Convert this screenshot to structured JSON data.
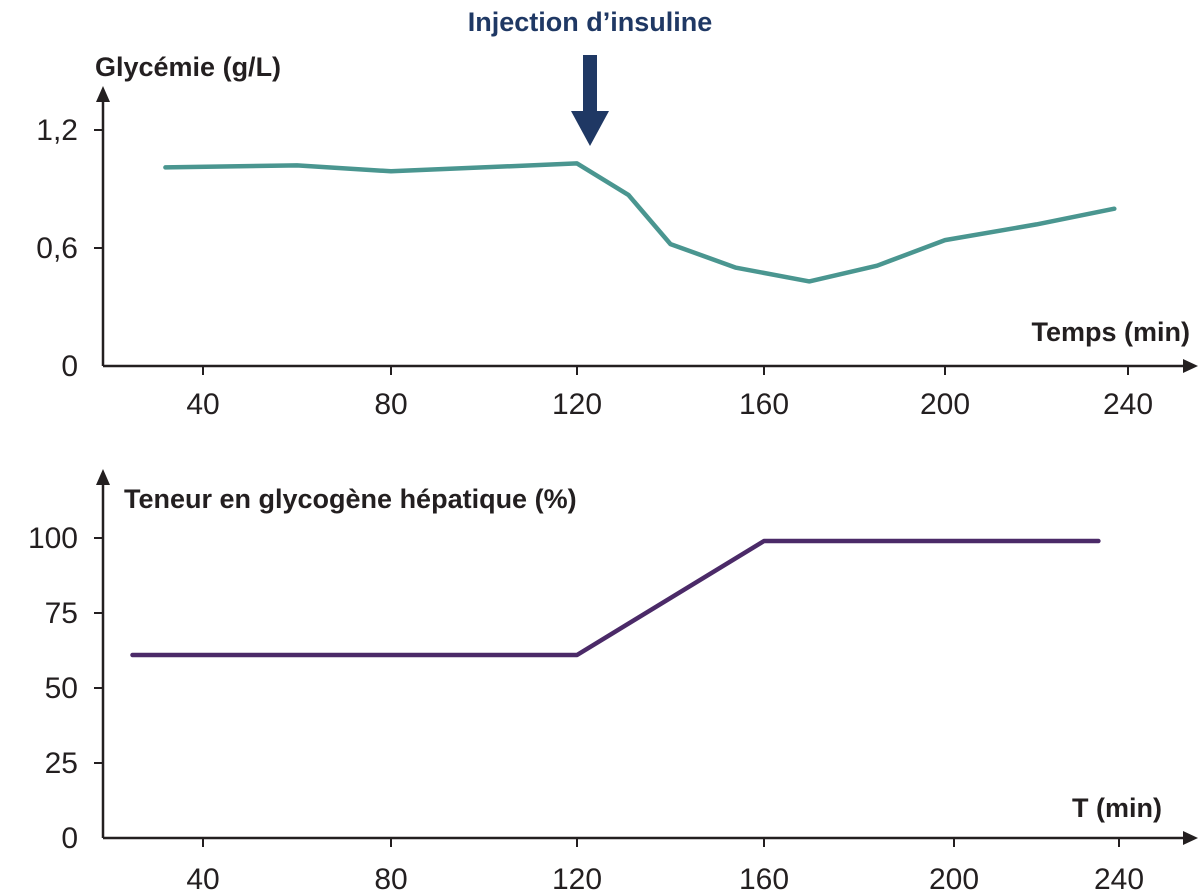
{
  "colors": {
    "axis": "#231f20",
    "glycemia_line": "#4a9690",
    "glycogen_line": "#4b2a68",
    "annotation": "#1f3864"
  },
  "chart_data": [
    {
      "type": "line",
      "title": "",
      "ylabel": "Glycémie (g/L)",
      "xlabel": "Temps (min)",
      "xlim": [
        20,
        250
      ],
      "ylim": [
        0,
        1.2
      ],
      "x_ticks": [
        40,
        80,
        120,
        160,
        200,
        240
      ],
      "y_ticks": [
        0,
        0.6,
        1.2
      ],
      "y_tick_labels": [
        "0",
        "0,6",
        "1,2"
      ],
      "grid": false,
      "annotation": {
        "text": "Injection d’insuline",
        "x": 120,
        "marker": "down-arrow"
      },
      "series": [
        {
          "color": "#4a9690",
          "x": [
            32,
            60,
            80,
            120,
            131,
            140,
            154,
            170,
            185,
            200,
            220,
            237
          ],
          "y": [
            1.01,
            1.02,
            0.99,
            1.03,
            0.87,
            0.62,
            0.5,
            0.43,
            0.51,
            0.64,
            0.72,
            0.8
          ]
        }
      ]
    },
    {
      "type": "line",
      "title": "",
      "ylabel": "Teneur en glycogène hépatique (%)",
      "xlabel": "T (min)",
      "xlim": [
        20,
        250
      ],
      "ylim": [
        0,
        100
      ],
      "x_ticks": [
        40,
        80,
        120,
        160,
        200,
        240
      ],
      "y_ticks": [
        0,
        25,
        50,
        75,
        100
      ],
      "y_tick_labels": [
        "0",
        "25",
        "50",
        "75",
        "100"
      ],
      "grid": false,
      "series": [
        {
          "color": "#4b2a68",
          "x": [
            25,
            120,
            160,
            235
          ],
          "y": [
            61,
            61,
            99,
            99
          ]
        }
      ]
    }
  ]
}
